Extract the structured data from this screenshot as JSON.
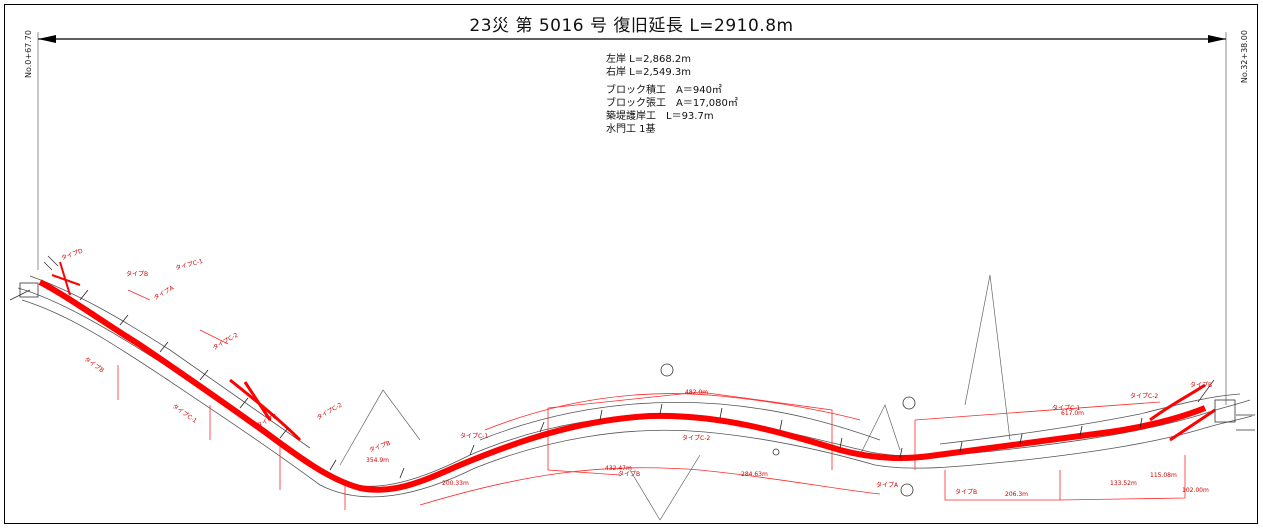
{
  "drawing": {
    "title": "23災 第 5016 号 復旧延長 L=2910.8m",
    "station_start": "No.0+67.70",
    "station_end": "No.32+38.00"
  },
  "notes": {
    "left_bank": "左岸 L=2,868.2m",
    "right_bank": "右岸 L=2,549.3m",
    "block_masonry": "ブロック積工　A＝940㎡",
    "block_pavement": "ブロック張工　A＝17,080㎡",
    "embankment_revetment": "築堤護岸工　L＝93.7m",
    "sluice_gate": "水門工 1基"
  },
  "plan": {
    "section_labels": [
      "タイプD",
      "タイプB",
      "タイプC-1",
      "タイプA",
      "タイプC-2",
      "タイプB",
      "タイプC-1",
      "タイプB",
      "タイプC-2",
      "タイプB",
      "タイプC-1",
      "タイプB",
      "タイプC-2",
      "タイプA",
      "タイプB",
      "タイプC-1",
      "タイプC-2",
      "タイプB"
    ],
    "length_labels": [
      "354.9m",
      "482.0m",
      "432.47m",
      "617.0m",
      "206.3m",
      "133.52m",
      "115.08m",
      "102.00m",
      "284.63m",
      "200.33m"
    ],
    "colors": {
      "river": "#ff0000",
      "outline": "#ff2a2a",
      "linework": "#555555",
      "frame": "#000000"
    }
  }
}
